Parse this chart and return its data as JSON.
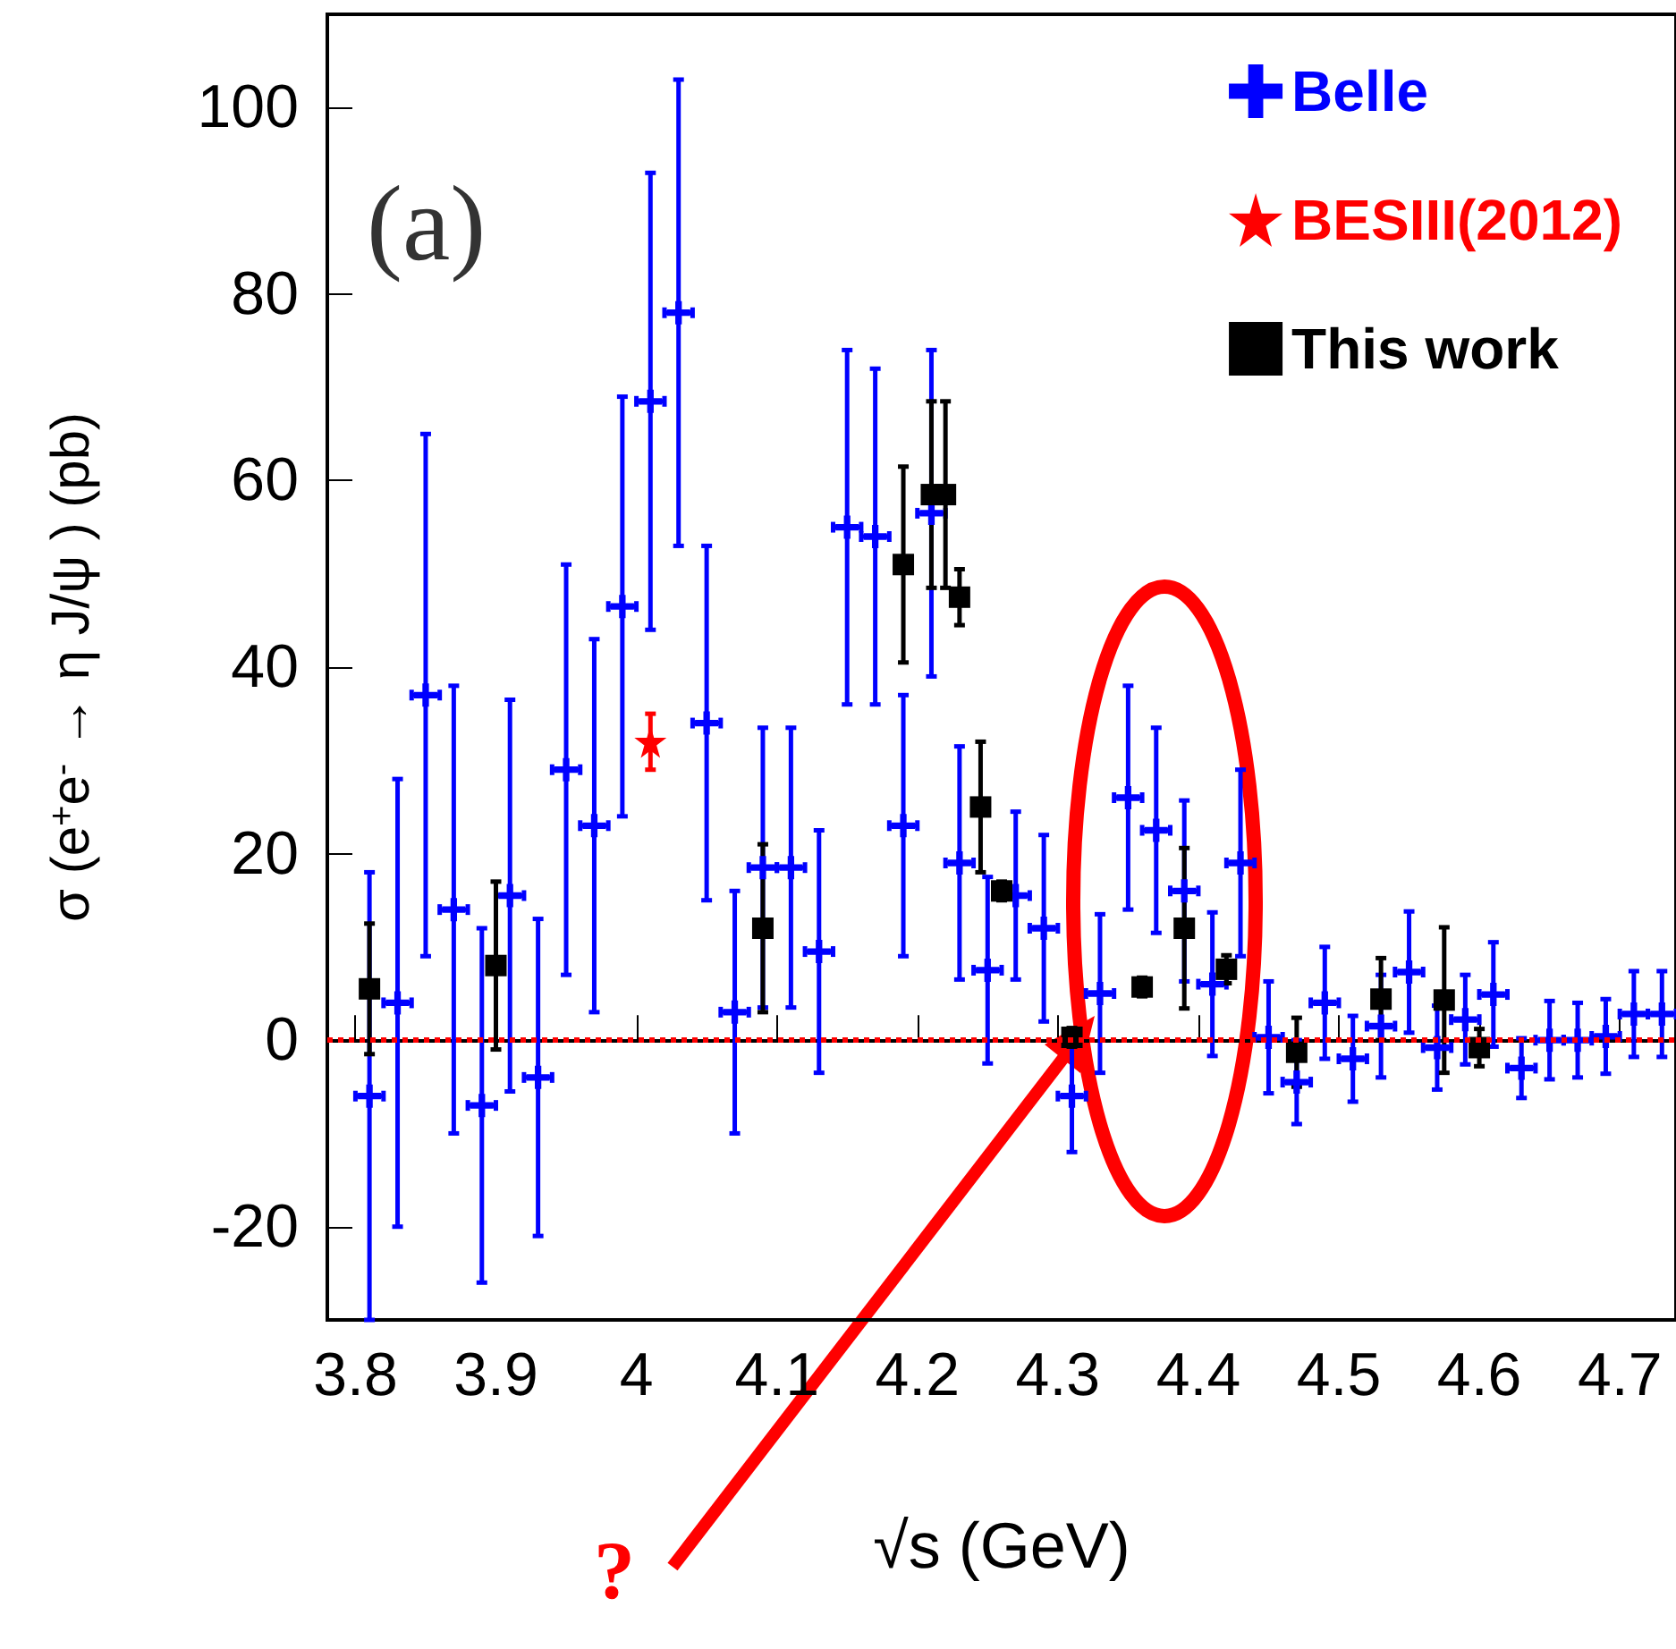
{
  "chart_data": {
    "type": "scatter",
    "xlabel": "√s (GeV)",
    "ylabel": "σ (e$^{+}$e$^{-}$ → η J/ψ ) (pb)",
    "xlim": [
      3.78,
      4.74
    ],
    "ylim": [
      -30,
      110
    ],
    "xticks": [
      3.8,
      3.9,
      4,
      4.1,
      4.2,
      4.3,
      4.4,
      4.5,
      4.6,
      4.7
    ],
    "yticks": [
      -20,
      0,
      20,
      40,
      60,
      80,
      100
    ],
    "grid": false,
    "legend": "top right",
    "annotations": [
      "(a)",
      "?"
    ],
    "ref_lines": [
      {
        "axis": "y",
        "value": 0,
        "color": "#ff0000",
        "line_style": "dotted"
      }
    ],
    "series": [
      {
        "name": "Belle",
        "color": "#0000ff",
        "marker": "cross",
        "x": [
          3.81,
          3.83,
          3.85,
          3.87,
          3.89,
          3.91,
          3.93,
          3.95,
          3.97,
          3.99,
          4.01,
          4.03,
          4.05,
          4.07,
          4.09,
          4.11,
          4.13,
          4.15,
          4.17,
          4.19,
          4.21,
          4.23,
          4.25,
          4.27,
          4.29,
          4.31,
          4.33,
          4.35,
          4.37,
          4.39,
          4.41,
          4.43,
          4.45,
          4.47,
          4.49,
          4.51,
          4.53,
          4.55,
          4.57,
          4.59,
          4.61,
          4.63,
          4.65,
          4.67,
          4.69,
          4.71,
          4.73
        ],
        "values": [
          -6,
          4,
          37,
          14,
          -7,
          15.5,
          -4,
          29,
          23,
          46.5,
          68.5,
          78,
          34,
          3,
          18.5,
          18.5,
          9.5,
          55,
          54,
          23,
          56.5,
          19,
          7.5,
          15.5,
          12,
          -6,
          5,
          26,
          22.5,
          16,
          6,
          19,
          0.3,
          -4.5,
          4,
          -2,
          1.5,
          7.3,
          -0.8,
          2.2,
          4.9,
          -3,
          0,
          0,
          0.4,
          2.8,
          2.8
        ],
        "errors": [
          24,
          24,
          28,
          24,
          19,
          21,
          17,
          22,
          20,
          22.5,
          24.5,
          25,
          19,
          13,
          15,
          15,
          13,
          19,
          18,
          14,
          17.5,
          12.5,
          10,
          9,
          10,
          6,
          8.5,
          12,
          11,
          9.7,
          7.7,
          10,
          6,
          4.5,
          6,
          4.6,
          5.5,
          6.5,
          4.5,
          4.8,
          5.6,
          3.2,
          4.2,
          4,
          4,
          4.6,
          4.6
        ],
        "xerrors": [
          0.01,
          0.01,
          0.01,
          0.01,
          0.01,
          0.01,
          0.01,
          0.01,
          0.01,
          0.01,
          0.01,
          0.01,
          0.01,
          0.01,
          0.01,
          0.01,
          0.01,
          0.01,
          0.01,
          0.01,
          0.01,
          0.01,
          0.01,
          0.01,
          0.01,
          0.01,
          0.01,
          0.01,
          0.01,
          0.01,
          0.01,
          0.01,
          0.01,
          0.01,
          0.01,
          0.01,
          0.01,
          0.01,
          0.01,
          0.01,
          0.01,
          0.01,
          0.01,
          0.01,
          0.01,
          0.01,
          0.01
        ]
      },
      {
        "name": "BESIII(2012)",
        "color": "#ff0000",
        "marker": "star",
        "x": [
          4.01
        ],
        "values": [
          32
        ],
        "errors": [
          3
        ]
      },
      {
        "name": "This work",
        "color": "#000000",
        "marker": "square",
        "x": [
          3.81,
          3.9,
          4.09,
          4.19,
          4.21,
          4.22,
          4.23,
          4.245,
          4.26,
          4.31,
          4.36,
          4.39,
          4.42,
          4.47,
          4.53,
          4.575,
          4.6
        ],
        "values": [
          5.5,
          8,
          12,
          51,
          58.5,
          58.5,
          47.5,
          25,
          16,
          0.3,
          5.7,
          12,
          7.6,
          -1.3,
          4.4,
          4.3,
          -0.8
        ],
        "errors": [
          7,
          9,
          9,
          10.5,
          10,
          10,
          3,
          7,
          1,
          1,
          1,
          8.6,
          1.5,
          3.7,
          4.4,
          7.8,
          2
        ]
      }
    ]
  }
}
